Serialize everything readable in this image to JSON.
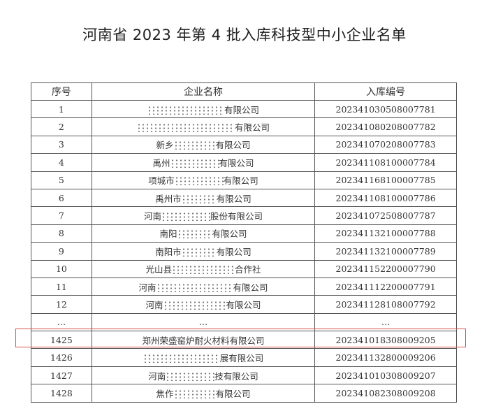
{
  "title": "河南省 2023 年第 4 批入库科技型中小企业名单",
  "headers": [
    "序号",
    "企业名称",
    "入库编号"
  ],
  "rows": [
    {
      "no": "1",
      "prefix": "",
      "suffix": "有限公司",
      "mask": 11,
      "code": "202341030508007781"
    },
    {
      "no": "2",
      "prefix": "",
      "suffix": "有限公司",
      "mask": 14,
      "code": "202341080208007782"
    },
    {
      "no": "3",
      "prefix": "新乡",
      "suffix": "有限公司",
      "mask": 6,
      "code": "202341070208007783"
    },
    {
      "no": "4",
      "prefix": "禹州",
      "suffix": "有限公司",
      "mask": 7,
      "code": "202341108100007784"
    },
    {
      "no": "5",
      "prefix": "项城市",
      "suffix": "有限公司",
      "mask": 7,
      "code": "202341168100007785"
    },
    {
      "no": "6",
      "prefix": "禹州市",
      "suffix": "有限公司",
      "mask": 5,
      "code": "202341108100007786"
    },
    {
      "no": "7",
      "prefix": "河南",
      "suffix": "股份有限公司",
      "mask": 7,
      "code": "202341072508007787"
    },
    {
      "no": "8",
      "prefix": "南阳",
      "suffix": "有限公司",
      "mask": 5,
      "code": "202341132100007788"
    },
    {
      "no": "9",
      "prefix": "南阳市",
      "suffix": "有限公司",
      "mask": 5,
      "code": "202341132100007789"
    },
    {
      "no": "10",
      "prefix": "光山县",
      "suffix": "合作社",
      "mask": 9,
      "code": "202341152200007790"
    },
    {
      "no": "11",
      "prefix": "河南",
      "suffix": "有限公司",
      "mask": 11,
      "code": "202341112200007791"
    },
    {
      "no": "12",
      "prefix": "河南",
      "suffix": "有限公司",
      "mask": 9,
      "code": "202341128108007792"
    },
    {
      "no": "…",
      "prefix": "…",
      "suffix": "",
      "mask": 0,
      "code": "…"
    },
    {
      "no": "1425",
      "prefix": "郑州荣盛窑炉耐火材料有限公司",
      "suffix": "",
      "mask": 0,
      "code": "202341018308009205"
    },
    {
      "no": "1426",
      "prefix": "",
      "suffix": "展有限公司",
      "mask": 11,
      "code": "202341132800009206"
    },
    {
      "no": "1427",
      "prefix": "河南",
      "suffix": "技有限公司",
      "mask": 7,
      "code": "202341010308009207"
    },
    {
      "no": "1428",
      "prefix": "焦作",
      "suffix": "有限公司",
      "mask": 6,
      "code": "202341082308009208"
    }
  ],
  "highlight_color": "#d9534f",
  "highlighted_row": "1425"
}
